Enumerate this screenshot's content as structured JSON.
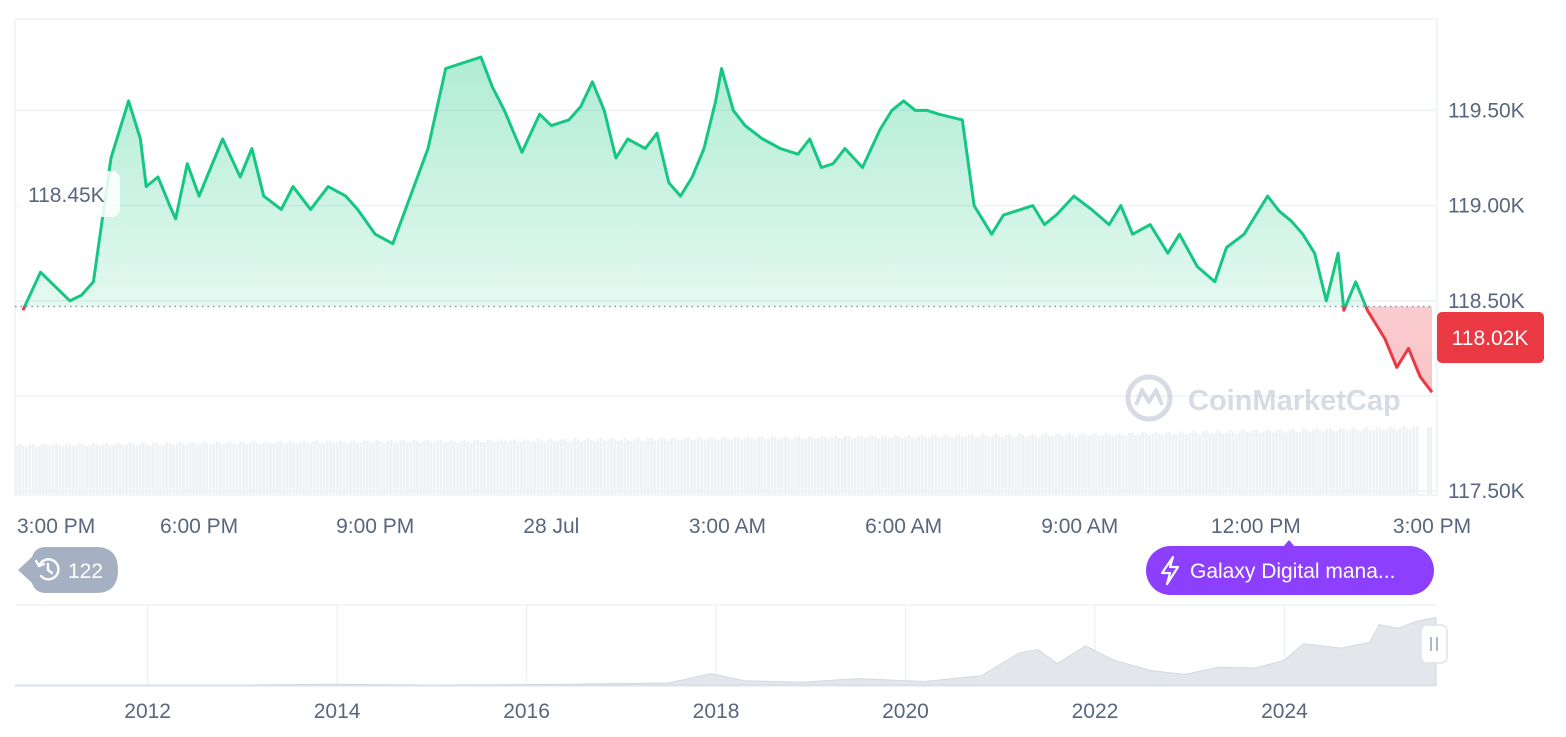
{
  "chart_data": {
    "type": "area",
    "reference_value": 118.47,
    "reference_label": "118.45K",
    "current_label": "118.02K",
    "y_unit": "K",
    "ylim": [
      117.48,
      119.98
    ],
    "y_ticks": [
      {
        "value": 119.5,
        "label": "119.50K"
      },
      {
        "value": 119.0,
        "label": "119.00K"
      },
      {
        "value": 118.5,
        "label": "118.50K"
      },
      {
        "value": 117.5,
        "label": "117.50K"
      }
    ],
    "x_ticks": [
      {
        "value": 0.0,
        "label": "3:00 PM"
      },
      {
        "value": 3.0,
        "label": "6:00 PM"
      },
      {
        "value": 6.0,
        "label": "9:00 PM"
      },
      {
        "value": 9.0,
        "label": "28 Jul"
      },
      {
        "value": 12.0,
        "label": "3:00 AM"
      },
      {
        "value": 15.0,
        "label": "6:00 AM"
      },
      {
        "value": 18.0,
        "label": "9:00 AM"
      },
      {
        "value": 21.0,
        "label": "12:00 PM"
      },
      {
        "value": 24.0,
        "label": "3:00 PM"
      }
    ],
    "xlim": [
      -0.05,
      24.0
    ],
    "series": [
      {
        "points": [
          [
            0.0,
            118.45
          ],
          [
            0.3,
            118.65
          ],
          [
            0.8,
            118.5
          ],
          [
            1.0,
            118.53
          ],
          [
            1.2,
            118.6
          ],
          [
            1.5,
            119.25
          ],
          [
            1.7,
            119.45
          ],
          [
            1.8,
            119.55
          ],
          [
            2.0,
            119.35
          ],
          [
            2.1,
            119.1
          ],
          [
            2.3,
            119.15
          ],
          [
            2.5,
            119.0
          ],
          [
            2.6,
            118.93
          ],
          [
            2.8,
            119.22
          ],
          [
            3.0,
            119.05
          ],
          [
            3.2,
            119.2
          ],
          [
            3.4,
            119.35
          ],
          [
            3.7,
            119.15
          ],
          [
            3.9,
            119.3
          ],
          [
            4.1,
            119.05
          ],
          [
            4.4,
            118.98
          ],
          [
            4.6,
            119.1
          ],
          [
            4.9,
            118.98
          ],
          [
            5.2,
            119.1
          ],
          [
            5.5,
            119.05
          ],
          [
            5.7,
            118.98
          ],
          [
            6.0,
            118.85
          ],
          [
            6.3,
            118.8
          ],
          [
            6.6,
            119.05
          ],
          [
            6.9,
            119.3
          ],
          [
            7.2,
            119.72
          ],
          [
            7.5,
            119.75
          ],
          [
            7.8,
            119.78
          ],
          [
            8.0,
            119.62
          ],
          [
            8.2,
            119.5
          ],
          [
            8.5,
            119.28
          ],
          [
            8.8,
            119.48
          ],
          [
            9.0,
            119.42
          ],
          [
            9.3,
            119.45
          ],
          [
            9.5,
            119.52
          ],
          [
            9.7,
            119.65
          ],
          [
            9.9,
            119.5
          ],
          [
            10.1,
            119.25
          ],
          [
            10.3,
            119.35
          ],
          [
            10.6,
            119.3
          ],
          [
            10.8,
            119.38
          ],
          [
            11.0,
            119.12
          ],
          [
            11.2,
            119.05
          ],
          [
            11.4,
            119.15
          ],
          [
            11.6,
            119.3
          ],
          [
            11.8,
            119.55
          ],
          [
            11.9,
            119.72
          ],
          [
            12.1,
            119.5
          ],
          [
            12.3,
            119.42
          ],
          [
            12.6,
            119.35
          ],
          [
            12.9,
            119.3
          ],
          [
            13.2,
            119.27
          ],
          [
            13.4,
            119.35
          ],
          [
            13.6,
            119.2
          ],
          [
            13.8,
            119.22
          ],
          [
            14.0,
            119.3
          ],
          [
            14.3,
            119.2
          ],
          [
            14.6,
            119.4
          ],
          [
            14.8,
            119.5
          ],
          [
            15.0,
            119.55
          ],
          [
            15.2,
            119.5
          ],
          [
            15.4,
            119.5
          ],
          [
            15.6,
            119.48
          ],
          [
            16.0,
            119.45
          ],
          [
            16.2,
            119.0
          ],
          [
            16.5,
            118.85
          ],
          [
            16.7,
            118.95
          ],
          [
            17.0,
            118.98
          ],
          [
            17.2,
            119.0
          ],
          [
            17.4,
            118.9
          ],
          [
            17.6,
            118.95
          ],
          [
            17.9,
            119.05
          ],
          [
            18.2,
            118.98
          ],
          [
            18.5,
            118.9
          ],
          [
            18.7,
            119.0
          ],
          [
            18.9,
            118.85
          ],
          [
            19.2,
            118.9
          ],
          [
            19.5,
            118.75
          ],
          [
            19.7,
            118.85
          ],
          [
            20.0,
            118.68
          ],
          [
            20.3,
            118.6
          ],
          [
            20.5,
            118.78
          ],
          [
            20.8,
            118.85
          ],
          [
            21.0,
            118.95
          ],
          [
            21.2,
            119.05
          ],
          [
            21.4,
            118.97
          ],
          [
            21.6,
            118.92
          ],
          [
            21.8,
            118.85
          ],
          [
            22.0,
            118.75
          ],
          [
            22.2,
            118.5
          ],
          [
            22.4,
            118.75
          ],
          [
            22.5,
            118.45
          ],
          [
            22.7,
            118.6
          ],
          [
            22.9,
            118.45
          ],
          [
            23.2,
            118.3
          ],
          [
            23.4,
            118.15
          ],
          [
            23.6,
            118.25
          ],
          [
            23.8,
            118.1
          ],
          [
            24.0,
            118.02
          ]
        ]
      }
    ],
    "volume": {
      "relative_values": [
        0.62,
        0.63,
        0.64,
        0.65,
        0.66,
        0.67,
        0.67,
        0.68,
        0.69,
        0.7,
        0.71,
        0.72,
        0.73,
        0.74,
        0.75,
        0.76,
        0.78,
        0.8,
        0.82,
        0.84
      ]
    },
    "navigator": {
      "x_ticks": [
        {
          "value": 2012,
          "label": "2012"
        },
        {
          "value": 2014,
          "label": "2014"
        },
        {
          "value": 2016,
          "label": "2016"
        },
        {
          "value": 2018,
          "label": "2018"
        },
        {
          "value": 2020,
          "label": "2020"
        },
        {
          "value": 2022,
          "label": "2022"
        },
        {
          "value": 2024,
          "label": "2024"
        }
      ],
      "xlim": [
        2010.6,
        2025.6
      ],
      "history": [
        [
          2010.6,
          0.0
        ],
        [
          2011.5,
          0.0
        ],
        [
          2013.0,
          0.0
        ],
        [
          2013.9,
          0.01
        ],
        [
          2015.0,
          0.0
        ],
        [
          2016.5,
          0.01
        ],
        [
          2017.5,
          0.03
        ],
        [
          2017.95,
          0.16
        ],
        [
          2018.3,
          0.06
        ],
        [
          2018.9,
          0.04
        ],
        [
          2019.5,
          0.09
        ],
        [
          2020.2,
          0.05
        ],
        [
          2020.8,
          0.13
        ],
        [
          2021.2,
          0.45
        ],
        [
          2021.4,
          0.5
        ],
        [
          2021.6,
          0.3
        ],
        [
          2021.9,
          0.55
        ],
        [
          2022.2,
          0.35
        ],
        [
          2022.6,
          0.2
        ],
        [
          2022.95,
          0.15
        ],
        [
          2023.3,
          0.25
        ],
        [
          2023.7,
          0.24
        ],
        [
          2024.0,
          0.35
        ],
        [
          2024.2,
          0.58
        ],
        [
          2024.6,
          0.52
        ],
        [
          2024.9,
          0.6
        ],
        [
          2025.0,
          0.85
        ],
        [
          2025.2,
          0.8
        ],
        [
          2025.4,
          0.9
        ],
        [
          2025.6,
          0.95
        ]
      ]
    }
  },
  "badges": {
    "history_count": "122",
    "news": "Galaxy Digital mana..."
  },
  "watermark": "CoinMarketCap",
  "colors": {
    "up": "#16c784",
    "down": "#ea3943",
    "news_badge": "#8d3ffe",
    "history_badge": "#a6b0c3",
    "grid": "#eff2f5",
    "volume": "#eff2f5",
    "text": "#58667e"
  },
  "icons": {
    "history": "history-icon",
    "news": "lightning-icon",
    "watermark": "coinmarketcap-logo-icon",
    "navigator_handle": "drag-handle-icon"
  }
}
